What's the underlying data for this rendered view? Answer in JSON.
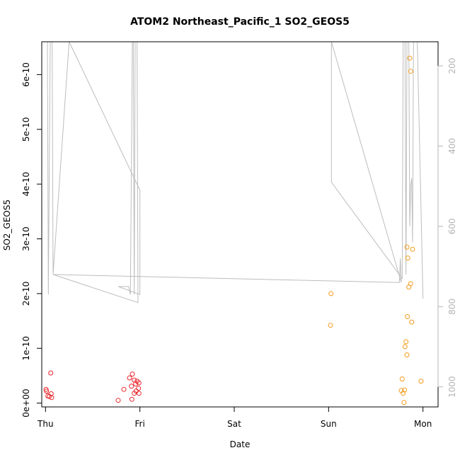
{
  "chart_data": {
    "type": "scatter",
    "title": "ATOM2 Northeast_Pacific_1 SO2_GEOS5",
    "xlabel": "Date",
    "ylabel": "SO2_GEOS5",
    "x_ticks": [
      {
        "label": "Thu",
        "value": 0
      },
      {
        "label": "Fri",
        "value": 1
      },
      {
        "label": "Sat",
        "value": 2
      },
      {
        "label": "Sun",
        "value": 3
      },
      {
        "label": "Mon",
        "value": 4
      }
    ],
    "y_ticks": [
      {
        "label": "0e+00",
        "value": 0
      },
      {
        "label": "1e-10",
        "value": 1e-10
      },
      {
        "label": "2e-10",
        "value": 2e-10
      },
      {
        "label": "3e-10",
        "value": 3e-10
      },
      {
        "label": "4e-10",
        "value": 4e-10
      },
      {
        "label": "5e-10",
        "value": 5e-10
      },
      {
        "label": "6e-10",
        "value": 6e-10
      }
    ],
    "y2_ticks": [
      {
        "label": "200",
        "value": 200
      },
      {
        "label": "400",
        "value": 400
      },
      {
        "label": "600",
        "value": 600
      },
      {
        "label": "800",
        "value": 800
      },
      {
        "label": "1000",
        "value": 1000
      }
    ],
    "xlim": [
      -0.04,
      4.16
    ],
    "ylim": [
      -7e-12,
      6.6e-10
    ],
    "y2lim": [
      1050,
      140
    ],
    "y2_reversed": true,
    "grid": false,
    "colors": {
      "red": "#e8282d",
      "orange": "#f39c1f",
      "pressure": "#bdbdbd"
    },
    "series": [
      {
        "color": "red",
        "points": [
          [
            0.005,
            2.5e-11
          ],
          [
            0.01,
            2.2e-11
          ],
          [
            0.025,
            1.3e-11
          ],
          [
            0.04,
            1.2e-11
          ],
          [
            0.06,
            1.7e-11
          ],
          [
            0.065,
            1e-11
          ],
          [
            0.055,
            5.5e-11
          ],
          [
            0.77,
            5e-12
          ],
          [
            0.83,
            2.5e-11
          ],
          [
            0.89,
            4.6e-11
          ],
          [
            0.91,
            3.1e-11
          ],
          [
            0.92,
            5.3e-11
          ],
          [
            0.915,
            7e-12
          ],
          [
            0.94,
            4.2e-11
          ],
          [
            0.94,
            1.8e-11
          ],
          [
            0.955,
            3.5e-11
          ],
          [
            0.96,
            2.2e-11
          ],
          [
            0.97,
            4e-11
          ],
          [
            0.985,
            2.7e-11
          ],
          [
            0.99,
            1.8e-11
          ],
          [
            0.99,
            3.7e-11
          ]
        ]
      },
      {
        "color": "orange",
        "points": [
          [
            3.025,
            2e-10
          ],
          [
            3.02,
            1.42e-10
          ],
          [
            3.77,
            2.3e-11
          ],
          [
            3.78,
            4.4e-11
          ],
          [
            3.79,
            1.8e-11
          ],
          [
            3.8,
            1e-12
          ],
          [
            3.805,
            2.4e-11
          ],
          [
            3.81,
            1.03e-10
          ],
          [
            3.82,
            1.12e-10
          ],
          [
            3.83,
            8.8e-11
          ],
          [
            3.835,
            1.58e-10
          ],
          [
            3.83,
            2.85e-10
          ],
          [
            3.84,
            2.65e-10
          ],
          [
            3.85,
            2.12e-10
          ],
          [
            3.86,
            6.3e-10
          ],
          [
            3.87,
            6.06e-10
          ],
          [
            3.87,
            2.18e-10
          ],
          [
            3.88,
            1.48e-10
          ],
          [
            3.89,
            2.81e-10
          ],
          [
            3.98,
            4e-11
          ]
        ]
      }
    ],
    "pressure_trace": [
      [
        0.0,
        140
      ],
      [
        0.02,
        140
      ],
      [
        0.03,
        770
      ],
      [
        0.05,
        140
      ],
      [
        0.07,
        140
      ],
      [
        0.08,
        720
      ],
      [
        0.25,
        140
      ],
      [
        1.0,
        510
      ],
      [
        1.0,
        770
      ],
      [
        0.77,
        750
      ],
      [
        0.88,
        750
      ],
      [
        0.9,
        770
      ],
      [
        0.92,
        140
      ],
      [
        0.93,
        140
      ],
      [
        0.94,
        770
      ],
      [
        0.95,
        140
      ],
      [
        0.97,
        140
      ],
      [
        0.98,
        790
      ],
      [
        0.08,
        720
      ],
      [
        3.75,
        740
      ],
      [
        3.76,
        680
      ],
      [
        3.77,
        740
      ],
      [
        3.03,
        140
      ],
      [
        3.03,
        490
      ],
      [
        3.78,
        730
      ],
      [
        3.79,
        140
      ],
      [
        3.81,
        140
      ],
      [
        3.82,
        720
      ],
      [
        3.83,
        140
      ],
      [
        3.85,
        140
      ],
      [
        3.86,
        600
      ],
      [
        3.87,
        500
      ],
      [
        3.88,
        480
      ],
      [
        3.89,
        640
      ],
      [
        3.9,
        140
      ],
      [
        3.94,
        140
      ],
      [
        4.0,
        780
      ]
    ]
  }
}
